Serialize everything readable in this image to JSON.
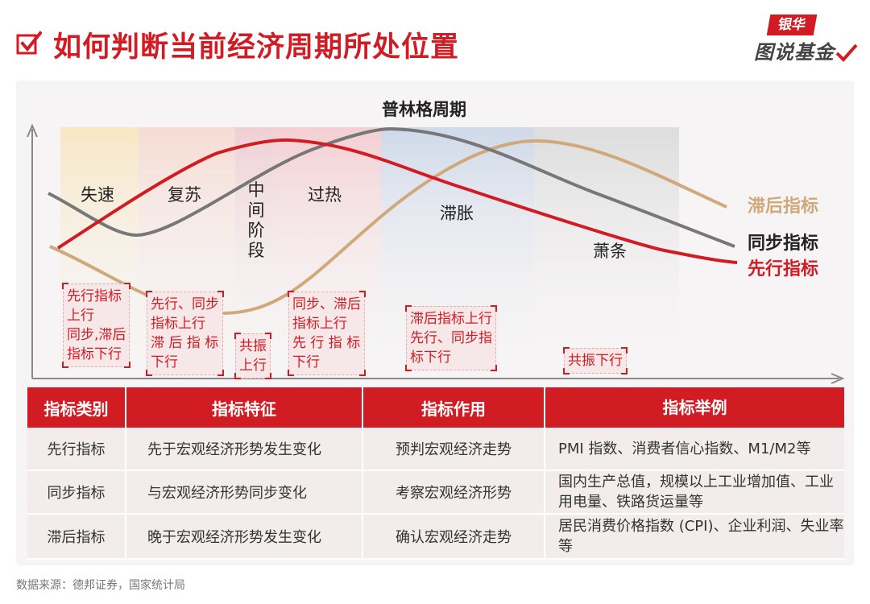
{
  "header": {
    "title": "如何判断当前经济周期所处位置",
    "logo_top": "银华",
    "logo_bottom": "图说基金",
    "accent_color": "#d21c24"
  },
  "diagram": {
    "cycle_title": "普林格周期",
    "stages": {
      "s1": "失速",
      "s2": "复苏",
      "s3": "中间阶段",
      "s4": "过热",
      "s5": "滞胀",
      "s6": "萧条"
    },
    "legend": {
      "lagging": "滞后指标",
      "coincident": "同步指标",
      "leading": "先行指标"
    },
    "colors": {
      "leading": "#d21c24",
      "coincident": "#777777",
      "lagging": "#cfa97a"
    },
    "notes": {
      "n1": [
        "先行指标",
        "上行",
        "同步,滞后",
        "指标下行"
      ],
      "n2": [
        "先行、同步",
        "指标上行",
        "滞 后 指 标",
        "下行"
      ],
      "n3": [
        "共振",
        "上行"
      ],
      "n4": [
        "同步、滞后",
        "指标上行",
        "先 行 指 标",
        "下行"
      ],
      "n5": [
        "滞后指标上行",
        "先行、同步指",
        "标下行"
      ],
      "n6": [
        "共振下行"
      ]
    }
  },
  "table": {
    "headers": [
      "指标类别",
      "指标特征",
      "指标作用",
      "指标举例"
    ],
    "rows": [
      {
        "c0": "先行指标",
        "c1": "先于宏观经济形势发生变化",
        "c2": "预判宏观经济走势",
        "c3": "PMI 指数、消费者信心指数、M1/M2等"
      },
      {
        "c0": "同步指标",
        "c1": "与宏观经济形势同步变化",
        "c2": "考察宏观经济形势",
        "c3": "国内生产总值，规模以上工业增加值、工业用电量、铁路货运量等"
      },
      {
        "c0": "滞后指标",
        "c1": "晚于宏观经济形势发生变化",
        "c2": "确认宏观经济走势",
        "c3": "居民消费价格指数 (CPI)、企业利润、失业率等"
      }
    ]
  },
  "source": "数据来源：德邦证券，国家统计局"
}
